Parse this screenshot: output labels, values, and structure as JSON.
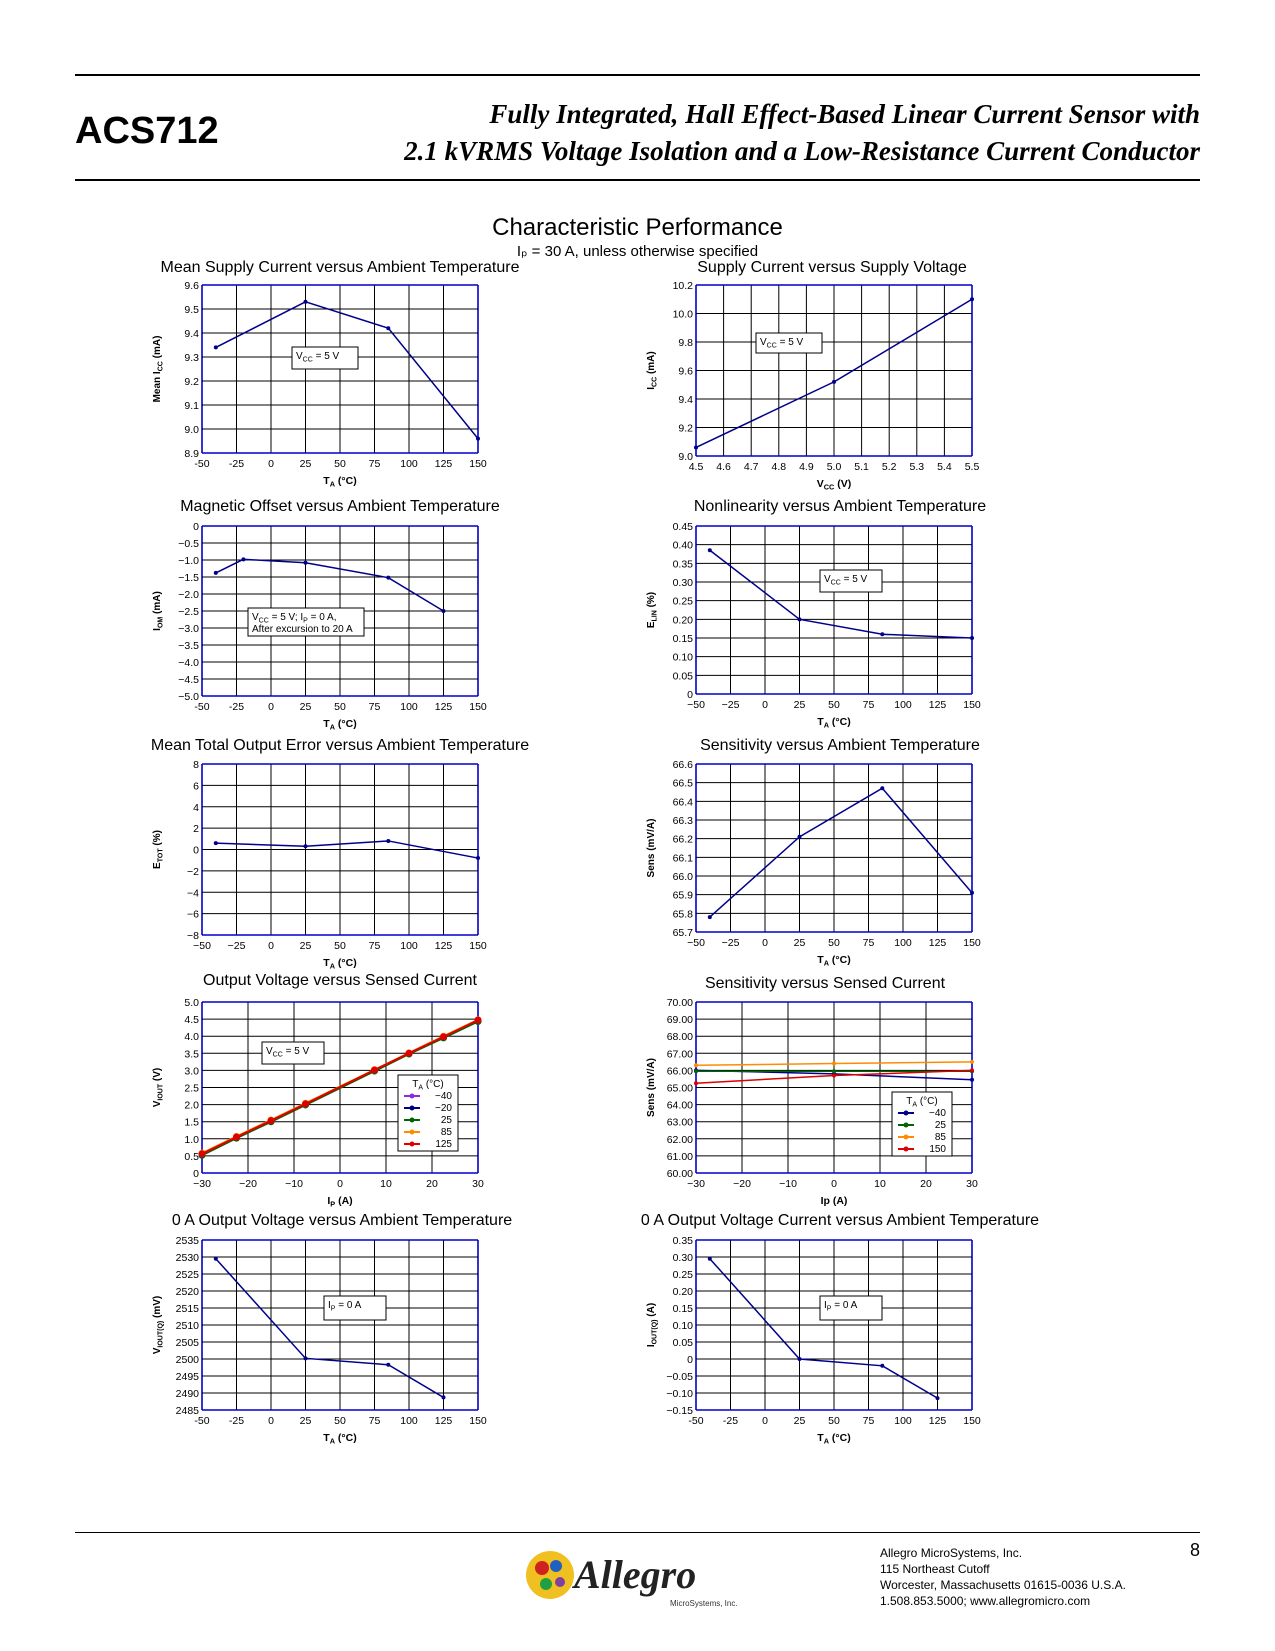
{
  "header": {
    "part_number": "ACS712",
    "title_line1": "Fully Integrated, Hall Effect-Based Linear Current Sensor with",
    "title_line2": "2.1 kVRMS Voltage Isolation and a Low-Resistance Current Conductor"
  },
  "section": {
    "title": "Characteristic Performance",
    "subtitle": "Iₚ = 30 A, unless otherwise specified"
  },
  "footer": {
    "company": "Allegro MicroSystems, Inc.",
    "address1": "115 Northeast Cutoff",
    "address2": "Worcester, Massachusetts 01615-0036 U.S.A.",
    "contact": "1.508.853.5000; www.allegromicro.com",
    "page_number": "8",
    "logo_text": "Allegro",
    "logo_subtext": "MicroSystems, Inc."
  },
  "colors": {
    "series": "#00008b",
    "grid_major": "#0000cc",
    "grid_minor": "#000000"
  },
  "chart_data": [
    {
      "id": "c1",
      "type": "line",
      "title": "Mean Supply Current versus Ambient Temperature",
      "xlabel": "T_A (°C)",
      "ylabel": "Mean I_CC (mA)",
      "xlim": [
        -50,
        150
      ],
      "ylim": [
        8.9,
        9.6
      ],
      "xticks": [
        "-50",
        "-25",
        "0",
        "25",
        "50",
        "75",
        "100",
        "125",
        "150"
      ],
      "yticks": [
        "8.9",
        "9.0",
        "9.1",
        "9.2",
        "9.3",
        "9.4",
        "9.5",
        "9.6"
      ],
      "annotation": "V_CC = 5 V",
      "series": [
        {
          "x": [
            -40,
            25,
            85,
            150
          ],
          "y": [
            9.34,
            9.53,
            9.42,
            8.96
          ]
        }
      ]
    },
    {
      "id": "c2",
      "type": "line",
      "title": "Supply Current versus Supply Voltage",
      "xlabel": "V_CC (V)",
      "ylabel": "I_CC (mA)",
      "xlim": [
        4.5,
        5.5
      ],
      "ylim": [
        9.0,
        10.2
      ],
      "xticks": [
        "4.5",
        "4.6",
        "4.7",
        "4.8",
        "4.9",
        "5.0",
        "5.1",
        "5.2",
        "5.3",
        "5.4",
        "5.5"
      ],
      "yticks": [
        "9.0",
        "9.2",
        "9.4",
        "9.6",
        "9.8",
        "10.0",
        "10.2"
      ],
      "annotation": "V_CC = 5 V",
      "series": [
        {
          "x": [
            4.5,
            5.0,
            5.5
          ],
          "y": [
            9.06,
            9.52,
            10.1
          ]
        }
      ]
    },
    {
      "id": "c3",
      "type": "line",
      "title": "Magnetic Offset versus Ambient Temperature",
      "xlabel": "T_A (°C)",
      "ylabel": "I_OM (mA)",
      "xlim": [
        -50,
        150
      ],
      "ylim": [
        -5.0,
        0
      ],
      "xticks": [
        "-50",
        "-25",
        "0",
        "25",
        "50",
        "75",
        "100",
        "125",
        "150"
      ],
      "yticks": [
        "−5.0",
        "−4.5",
        "−4.0",
        "−3.5",
        "−3.0",
        "−2.5",
        "−2.0",
        "−1.5",
        "−1.0",
        "−0.5",
        "0"
      ],
      "annotation": "V_CC = 5 V; I_P = 0 A,|After excursion to 20 A",
      "series": [
        {
          "x": [
            -40,
            -20,
            25,
            85,
            125
          ],
          "y": [
            -1.38,
            -0.98,
            -1.08,
            -1.52,
            -2.5
          ]
        }
      ]
    },
    {
      "id": "c4",
      "type": "line",
      "title": "Nonlinearity versus Ambient Temperature",
      "xlabel": "T_A (°C)",
      "ylabel": "E_LIN (%)",
      "xlim": [
        -50,
        150
      ],
      "ylim": [
        0,
        0.45
      ],
      "xticks": [
        "−50",
        "−25",
        "0",
        "25",
        "50",
        "75",
        "100",
        "125",
        "150"
      ],
      "yticks": [
        "0",
        "0.05",
        "0.10",
        "0.15",
        "0.20",
        "0.25",
        "0.30",
        "0.35",
        "0.40",
        "0.45"
      ],
      "annotation": "V_CC = 5 V",
      "series": [
        {
          "x": [
            -40,
            25,
            85,
            150
          ],
          "y": [
            0.385,
            0.2,
            0.16,
            0.15
          ]
        }
      ]
    },
    {
      "id": "c5",
      "type": "line",
      "title": "Mean Total Output Error versus Ambient Temperature",
      "xlabel": "T_A (°C)",
      "ylabel": "E_TOT (%)",
      "xlim": [
        -50,
        150
      ],
      "ylim": [
        -8,
        8
      ],
      "xticks": [
        "−50",
        "−25",
        "0",
        "25",
        "50",
        "75",
        "100",
        "125",
        "150"
      ],
      "yticks": [
        "−8",
        "−6",
        "−4",
        "−2",
        "0",
        "2",
        "4",
        "6",
        "8"
      ],
      "annotation": "",
      "series": [
        {
          "x": [
            -40,
            25,
            85,
            150
          ],
          "y": [
            0.6,
            0.3,
            0.8,
            -0.8
          ]
        }
      ]
    },
    {
      "id": "c6",
      "type": "line",
      "title": "Sensitivity versus Ambient Temperature",
      "xlabel": "T_A (°C)",
      "ylabel": "Sens (mV/A)",
      "xlim": [
        -50,
        150
      ],
      "ylim": [
        65.7,
        66.6
      ],
      "xticks": [
        "−50",
        "−25",
        "0",
        "25",
        "50",
        "75",
        "100",
        "125",
        "150"
      ],
      "yticks": [
        "65.7",
        "65.8",
        "65.9",
        "66.0",
        "66.1",
        "66.2",
        "66.3",
        "66.4",
        "66.5",
        "66.6"
      ],
      "annotation": "",
      "series": [
        {
          "x": [
            -40,
            25,
            85,
            150
          ],
          "y": [
            65.78,
            66.21,
            66.47,
            65.91
          ]
        }
      ]
    },
    {
      "id": "c7",
      "type": "line",
      "title": "Output Voltage versus Sensed Current",
      "xlabel": "I_P (A)",
      "ylabel": "V_IOUT (V)",
      "xlim": [
        -30,
        30
      ],
      "ylim": [
        0,
        5.0
      ],
      "xticks": [
        "−30",
        "−20",
        "−10",
        "0",
        "10",
        "20",
        "30"
      ],
      "yticks": [
        "0",
        "0.5",
        "1.0",
        "1.5",
        "2.0",
        "2.5",
        "3.0",
        "3.5",
        "4.0",
        "4.5",
        "5.0"
      ],
      "annotation": "V_CC = 5 V",
      "legend_title": "T_A (°C)",
      "series": [
        {
          "name": "−40",
          "color": "#8a2be2",
          "x": [
            -30,
            -22.5,
            -15,
            -7.5,
            7.5,
            15,
            22.5,
            30
          ],
          "y": [
            0.53,
            1.03,
            1.5,
            2.0,
            3.0,
            3.5,
            3.96,
            4.45
          ]
        },
        {
          "name": "−20",
          "color": "#000080",
          "x": [
            -30,
            -22.5,
            -15,
            -7.5,
            7.5,
            15,
            22.5,
            30
          ],
          "y": [
            0.54,
            1.04,
            1.51,
            2.01,
            3.0,
            3.49,
            3.97,
            4.44
          ]
        },
        {
          "name": "25",
          "color": "#006400",
          "x": [
            -30,
            -22.5,
            -15,
            -7.5,
            7.5,
            15,
            22.5,
            30
          ],
          "y": [
            0.52,
            1.02,
            1.5,
            1.99,
            2.98,
            3.48,
            3.95,
            4.43
          ]
        },
        {
          "name": "85",
          "color": "#ff8c00",
          "x": [
            -30,
            -22.5,
            -15,
            -7.5,
            7.5,
            15,
            22.5,
            30
          ],
          "y": [
            0.58,
            1.07,
            1.55,
            2.04,
            3.02,
            3.51,
            4.0,
            4.48
          ]
        },
        {
          "name": "125",
          "color": "#dd0000",
          "x": [
            -30,
            -22.5,
            -15,
            -7.5,
            7.5,
            15,
            22.5,
            30
          ],
          "y": [
            0.56,
            1.05,
            1.53,
            2.02,
            3.01,
            3.5,
            3.98,
            4.47
          ]
        }
      ]
    },
    {
      "id": "c8",
      "type": "line",
      "title": "Sensitivity versus Sensed Current",
      "xlabel": "Ip (A)",
      "ylabel": "Sens (mV/A)",
      "xlim": [
        -30,
        30
      ],
      "ylim": [
        60.0,
        70.0
      ],
      "xticks": [
        "−30",
        "−20",
        "−10",
        "0",
        "10",
        "20",
        "30"
      ],
      "yticks": [
        "60.00",
        "61.00",
        "62.00",
        "63.00",
        "64.00",
        "65.00",
        "66.00",
        "67.00",
        "68.00",
        "69.00",
        "70.00"
      ],
      "annotation": "",
      "legend_title": "T_A (°C)",
      "series": [
        {
          "name": "−40",
          "color": "#00008b",
          "x": [
            -30,
            0,
            30
          ],
          "y": [
            66.0,
            65.8,
            65.45
          ]
        },
        {
          "name": "25",
          "color": "#006400",
          "x": [
            -30,
            0,
            30
          ],
          "y": [
            65.95,
            65.95,
            65.95
          ]
        },
        {
          "name": "85",
          "color": "#ff8c00",
          "x": [
            -30,
            0,
            30
          ],
          "y": [
            66.3,
            66.4,
            66.5
          ]
        },
        {
          "name": "150",
          "color": "#dd0000",
          "x": [
            -30,
            0,
            30
          ],
          "y": [
            65.25,
            65.7,
            66.0
          ]
        }
      ]
    },
    {
      "id": "c9",
      "type": "line",
      "title": "0 A Output Voltage versus Ambient Temperature",
      "xlabel": "T_A (°C)",
      "ylabel": "V_IOUT(Q) (mV)",
      "xlim": [
        -50,
        150
      ],
      "ylim": [
        2485,
        2535
      ],
      "xticks": [
        "-50",
        "-25",
        "0",
        "25",
        "50",
        "75",
        "100",
        "125",
        "150"
      ],
      "yticks": [
        "2485",
        "2490",
        "2495",
        "2500",
        "2505",
        "2510",
        "2515",
        "2520",
        "2525",
        "2530",
        "2535"
      ],
      "annotation": "I_P = 0 A",
      "series": [
        {
          "x": [
            -40,
            25,
            85,
            125
          ],
          "y": [
            2529.5,
            2500.2,
            2498.3,
            2488.7
          ]
        }
      ]
    },
    {
      "id": "c10",
      "type": "line",
      "title": "0 A Output Voltage Current versus Ambient Temperature",
      "xlabel": "T_A (°C)",
      "ylabel": "I_OUT(Q) (A)",
      "xlim": [
        -50,
        150
      ],
      "ylim": [
        -0.15,
        0.35
      ],
      "xticks": [
        "-50",
        "-25",
        "0",
        "25",
        "50",
        "75",
        "100",
        "125",
        "150"
      ],
      "yticks": [
        "−0.15",
        "−0.10",
        "−0.05",
        "0",
        "0.05",
        "0.10",
        "0.15",
        "0.20",
        "0.25",
        "0.30",
        "0.35"
      ],
      "annotation": "I_P = 0 A",
      "series": [
        {
          "x": [
            -40,
            25,
            85,
            125
          ],
          "y": [
            0.295,
            0.0,
            -0.02,
            -0.115
          ]
        }
      ]
    }
  ]
}
